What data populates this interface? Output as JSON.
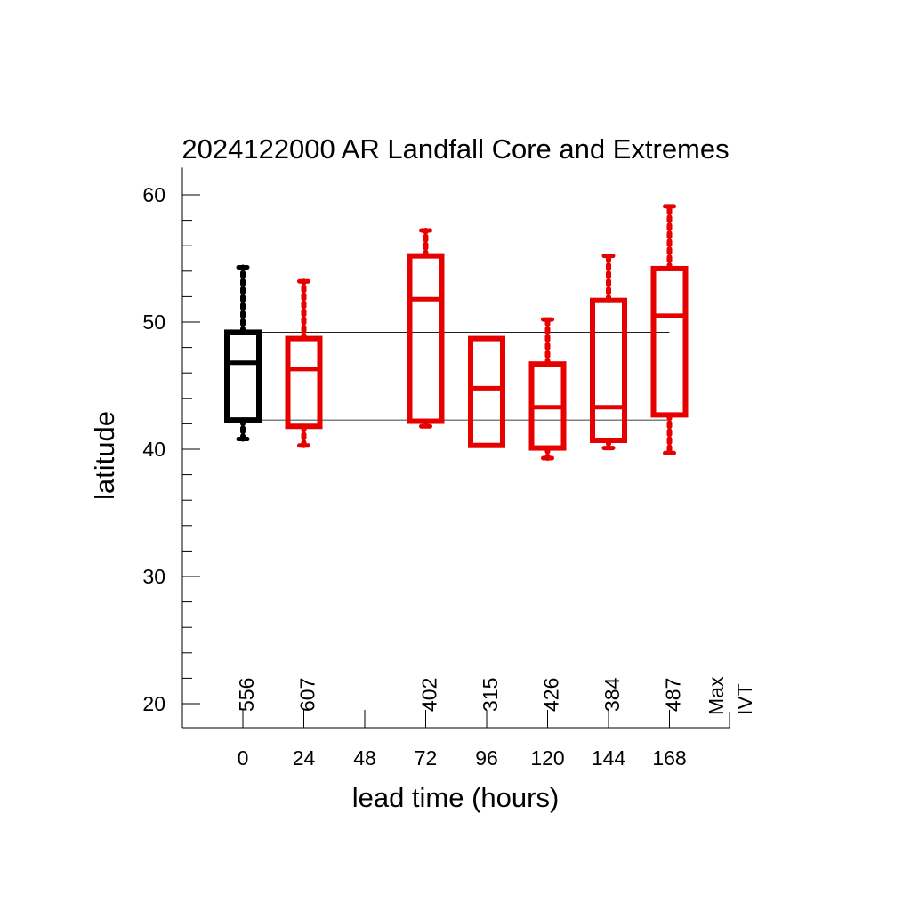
{
  "chart_data": {
    "type": "box",
    "title": "2024122000 AR Landfall Core and Extremes",
    "xlabel": "lead time (hours)",
    "ylabel": "latitude",
    "ylim": [
      18,
      62
    ],
    "yticks": [
      "20",
      "30",
      "40",
      "50",
      "60"
    ],
    "x_categories": [
      "0",
      "24",
      "48",
      "72",
      "96",
      "120",
      "144",
      "168"
    ],
    "count_header": [
      "Max",
      "IVT"
    ],
    "reference_lines": {
      "upper": 49.2,
      "lower": 42.3
    },
    "colors": {
      "analysis": "#000000",
      "forecast": "#e60000",
      "axis": "#000000"
    },
    "boxes": [
      {
        "lead": "0",
        "count": "556",
        "whisker_low": 40.8,
        "q1": 42.3,
        "median": 46.8,
        "q3": 49.2,
        "whisker_high": 54.3,
        "color": "#000000"
      },
      {
        "lead": "24",
        "count": "607",
        "whisker_low": 40.3,
        "q1": 41.8,
        "median": 46.3,
        "q3": 48.7,
        "whisker_high": 53.2,
        "color": "#e60000"
      },
      {
        "lead": "72",
        "count": "402",
        "whisker_low": 41.8,
        "q1": 42.2,
        "median": 51.8,
        "q3": 55.2,
        "whisker_high": 57.2,
        "color": "#e60000"
      },
      {
        "lead": "96",
        "count": "315",
        "whisker_low": 40.3,
        "q1": 40.3,
        "median": 44.8,
        "q3": 48.7,
        "whisker_high": 48.7,
        "color": "#e60000"
      },
      {
        "lead": "120",
        "count": "426",
        "whisker_low": 39.3,
        "q1": 40.1,
        "median": 43.3,
        "q3": 46.7,
        "whisker_high": 50.2,
        "color": "#e60000"
      },
      {
        "lead": "144",
        "count": "384",
        "whisker_low": 40.1,
        "q1": 40.7,
        "median": 43.3,
        "q3": 51.7,
        "whisker_high": 55.2,
        "color": "#e60000"
      },
      {
        "lead": "168",
        "count": "487",
        "whisker_low": 39.7,
        "q1": 42.7,
        "median": 50.5,
        "q3": 54.2,
        "whisker_high": 59.1,
        "color": "#e60000"
      }
    ]
  }
}
